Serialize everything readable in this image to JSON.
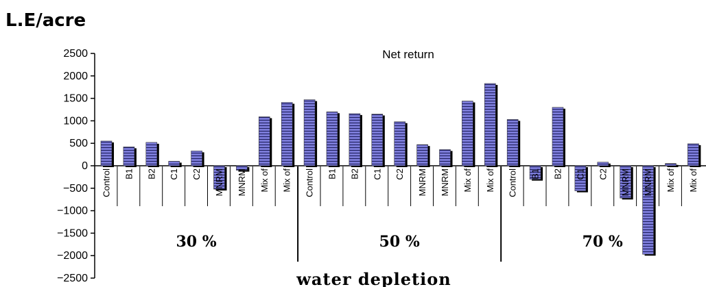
{
  "chart_data": {
    "type": "bar",
    "unit_title": "L.E/acre",
    "title": "Net return",
    "xlabel": "water depletion",
    "ylabel": "",
    "ylim": [
      -2500,
      2500
    ],
    "yticks": [
      2500,
      2000,
      1500,
      1000,
      500,
      0,
      -500,
      -1000,
      -1500,
      -2000,
      -2500
    ],
    "groups": [
      {
        "label": "30 %",
        "categories": [
          "Control",
          "B1",
          "B2",
          "C1",
          "C2",
          "MNRM",
          "MNRM",
          "Mix of",
          "Mix of"
        ],
        "values": [
          550,
          420,
          520,
          100,
          330,
          -520,
          -100,
          1090,
          1410
        ]
      },
      {
        "label": "50 %",
        "categories": [
          "Control",
          "B1",
          "B2",
          "C1",
          "C2",
          "MNRM",
          "MNRM",
          "Mix of",
          "Mix of"
        ],
        "values": [
          1470,
          1200,
          1160,
          1150,
          980,
          470,
          360,
          1440,
          1830
        ]
      },
      {
        "label": "70 %",
        "categories": [
          "Control",
          "B1",
          "B2",
          "C1",
          "C2",
          "MNRM",
          "MNRM",
          "Mix of",
          "Mix of"
        ],
        "values": [
          1030,
          -300,
          1300,
          -560,
          80,
          -720,
          -1970,
          50,
          490
        ]
      }
    ],
    "colors": {
      "bar": "#7b7bd8",
      "bar_stripe": "#1c1c5a",
      "shadow": "#000000"
    }
  }
}
